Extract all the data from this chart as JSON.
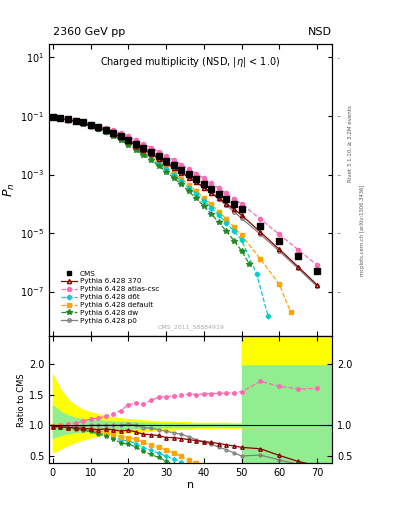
{
  "title_top": "2360 GeV pp",
  "title_right": "NSD",
  "main_title": "Charged multiplicity (NSD, |\\u03b7| < 1.0)",
  "xlabel": "n",
  "ylabel_main": "$P_n$",
  "ylabel_ratio": "Ratio to CMS",
  "watermark": "CMS_2011_S8884919",
  "cms_n": [
    0,
    2,
    4,
    6,
    8,
    10,
    12,
    14,
    16,
    18,
    20,
    22,
    24,
    26,
    28,
    30,
    32,
    34,
    36,
    38,
    40,
    42,
    44,
    46,
    48,
    50,
    55,
    60,
    65,
    70
  ],
  "cms_p": [
    0.093,
    0.085,
    0.078,
    0.069,
    0.06,
    0.05,
    0.042,
    0.034,
    0.027,
    0.021,
    0.015,
    0.011,
    0.0082,
    0.0059,
    0.0042,
    0.003,
    0.0021,
    0.00148,
    0.00103,
    0.00072,
    0.00049,
    0.00033,
    0.000222,
    0.000148,
    9.8e-05,
    6.4e-05,
    1.75e-05,
    5.5e-06,
    1.7e-06,
    5e-07
  ],
  "p370_n": [
    0,
    2,
    4,
    6,
    8,
    10,
    12,
    14,
    16,
    18,
    20,
    22,
    24,
    26,
    28,
    30,
    32,
    34,
    36,
    38,
    40,
    42,
    44,
    46,
    48,
    50,
    55,
    60,
    65,
    70
  ],
  "p370_p": [
    0.091,
    0.083,
    0.075,
    0.066,
    0.057,
    0.047,
    0.039,
    0.032,
    0.025,
    0.019,
    0.0138,
    0.0098,
    0.007,
    0.005,
    0.0035,
    0.0024,
    0.00168,
    0.00116,
    0.00079,
    0.00054,
    0.00036,
    0.000238,
    0.000156,
    0.000101,
    6.5e-05,
    4.1e-05,
    1.08e-05,
    2.8e-06,
    7e-07,
    1.7e-07
  ],
  "atlas_n": [
    0,
    2,
    4,
    6,
    8,
    10,
    12,
    14,
    16,
    18,
    20,
    22,
    24,
    26,
    28,
    30,
    32,
    34,
    36,
    38,
    40,
    42,
    44,
    46,
    48,
    50,
    55,
    60,
    65,
    70
  ],
  "atlas_p": [
    0.092,
    0.086,
    0.079,
    0.072,
    0.064,
    0.055,
    0.047,
    0.039,
    0.032,
    0.026,
    0.02,
    0.015,
    0.011,
    0.0083,
    0.0061,
    0.0044,
    0.0031,
    0.0022,
    0.00155,
    0.00108,
    0.00074,
    0.0005,
    0.000337,
    0.000226,
    0.00015,
    9.9e-05,
    3e-05,
    9e-06,
    2.7e-06,
    8e-07
  ],
  "d6t_n": [
    0,
    2,
    4,
    6,
    8,
    10,
    12,
    14,
    16,
    18,
    20,
    22,
    24,
    26,
    28,
    30,
    32,
    34,
    36,
    38,
    40,
    42,
    44,
    46,
    48,
    50,
    54,
    57
  ],
  "d6t_p": [
    0.091,
    0.083,
    0.075,
    0.066,
    0.056,
    0.046,
    0.037,
    0.029,
    0.022,
    0.016,
    0.0112,
    0.0077,
    0.0052,
    0.0035,
    0.0023,
    0.00149,
    0.00095,
    0.00059,
    0.00036,
    0.000218,
    0.000128,
    7.3e-05,
    4.1e-05,
    2.2e-05,
    1.15e-05,
    5.8e-06,
    4e-07,
    1.5e-08
  ],
  "default_n": [
    0,
    2,
    4,
    6,
    8,
    10,
    12,
    14,
    16,
    18,
    20,
    22,
    24,
    26,
    28,
    30,
    32,
    34,
    36,
    38,
    40,
    42,
    44,
    46,
    48,
    50,
    55,
    60,
    63
  ],
  "default_p": [
    0.092,
    0.084,
    0.076,
    0.067,
    0.057,
    0.047,
    0.038,
    0.03,
    0.023,
    0.017,
    0.012,
    0.0085,
    0.0059,
    0.004,
    0.0027,
    0.00178,
    0.00115,
    0.00073,
    0.00045,
    0.000275,
    0.000164,
    9.5e-05,
    5.4e-05,
    3e-05,
    1.6e-05,
    8.4e-06,
    1.3e-06,
    1.8e-07,
    2e-08
  ],
  "dw_n": [
    0,
    2,
    4,
    6,
    8,
    10,
    12,
    14,
    16,
    18,
    20,
    22,
    24,
    26,
    28,
    30,
    32,
    34,
    36,
    38,
    40,
    42,
    44,
    46,
    48,
    50,
    52
  ],
  "dw_p": [
    0.091,
    0.083,
    0.074,
    0.065,
    0.055,
    0.045,
    0.036,
    0.028,
    0.021,
    0.015,
    0.0104,
    0.0071,
    0.0047,
    0.0031,
    0.002,
    0.00126,
    0.00077,
    0.00046,
    0.000268,
    0.000152,
    8.4e-05,
    4.5e-05,
    2.3e-05,
    1.15e-05,
    5.5e-06,
    2.5e-06,
    9e-07
  ],
  "p0_n": [
    0,
    2,
    4,
    6,
    8,
    10,
    12,
    14,
    16,
    18,
    20,
    22,
    24,
    26,
    28,
    30,
    32,
    34,
    36,
    38,
    40,
    42,
    44,
    46,
    48,
    50,
    55,
    60,
    65,
    70
  ],
  "p0_p": [
    0.092,
    0.084,
    0.076,
    0.068,
    0.059,
    0.05,
    0.042,
    0.034,
    0.027,
    0.021,
    0.0153,
    0.011,
    0.0079,
    0.0056,
    0.0039,
    0.0027,
    0.00185,
    0.00126,
    0.00084,
    0.00055,
    0.000357,
    0.000228,
    0.000143,
    8.9e-05,
    5.4e-05,
    3.2e-05,
    9e-06,
    2.4e-06,
    6.2e-07,
    1.5e-07
  ],
  "colors": {
    "cms": "#000000",
    "p370": "#8B0000",
    "atlas": "#FF69B4",
    "d6t": "#00CED1",
    "default": "#FFA500",
    "dw": "#228B22",
    "p0": "#808080"
  },
  "band_x": [
    0,
    2,
    4,
    6,
    8,
    10,
    12,
    14,
    16,
    18,
    20,
    22,
    24,
    26,
    28,
    30,
    32,
    34,
    36,
    38,
    40,
    42,
    44,
    46,
    48,
    50
  ],
  "green_lo": [
    0.8,
    0.84,
    0.87,
    0.89,
    0.9,
    0.91,
    0.92,
    0.93,
    0.93,
    0.94,
    0.94,
    0.95,
    0.95,
    0.96,
    0.96,
    0.97,
    0.97,
    0.97,
    0.97,
    0.98,
    0.98,
    0.98,
    0.98,
    0.98,
    0.98,
    0.98
  ],
  "green_hi": [
    1.32,
    1.22,
    1.16,
    1.12,
    1.1,
    1.09,
    1.08,
    1.07,
    1.06,
    1.06,
    1.05,
    1.05,
    1.04,
    1.04,
    1.03,
    1.03,
    1.03,
    1.03,
    1.02,
    1.02,
    1.02,
    1.02,
    1.02,
    1.02,
    1.02,
    1.02
  ],
  "yellow_lo": [
    0.56,
    0.62,
    0.68,
    0.73,
    0.77,
    0.8,
    0.83,
    0.85,
    0.86,
    0.87,
    0.88,
    0.89,
    0.9,
    0.91,
    0.92,
    0.93,
    0.93,
    0.94,
    0.94,
    0.95,
    0.95,
    0.95,
    0.96,
    0.96,
    0.96,
    0.96
  ],
  "yellow_hi": [
    1.82,
    1.58,
    1.42,
    1.32,
    1.25,
    1.21,
    1.18,
    1.15,
    1.13,
    1.11,
    1.1,
    1.09,
    1.08,
    1.07,
    1.06,
    1.06,
    1.05,
    1.05,
    1.05,
    1.04,
    1.04,
    1.04,
    1.04,
    1.04,
    1.03,
    1.03
  ]
}
